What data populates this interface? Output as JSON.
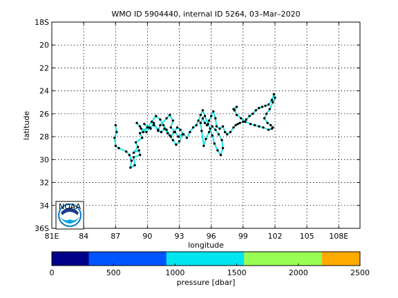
{
  "chart_data": {
    "type": "scatter",
    "title": "WMO ID 5904440, internal ID 5264, 03–Mar–2020",
    "xlabel": "longitude",
    "ylabel": "latitude",
    "xlim": [
      81,
      110
    ],
    "ylim_south_deg": [
      18,
      36
    ],
    "x_ticks": [
      81,
      84,
      87,
      90,
      93,
      96,
      99,
      102,
      105,
      108
    ],
    "x_tick_labels": [
      "81E",
      "84",
      "87",
      "90",
      "93",
      "96",
      "99",
      "102",
      "105",
      "108E"
    ],
    "y_ticks": [
      18,
      20,
      22,
      24,
      26,
      28,
      30,
      32,
      34,
      36
    ],
    "y_tick_labels": [
      "18S",
      "20",
      "22",
      "24",
      "26",
      "28",
      "30",
      "32",
      "34",
      "36S"
    ],
    "grid": true,
    "track_color": "#00e5e5",
    "point_color": "#000000",
    "track": {
      "lon": [
        87.0,
        87.1,
        86.9,
        87.0,
        87.3,
        88.0,
        88.3,
        88.5,
        88.4,
        88.8,
        88.7,
        89.3,
        89.2,
        88.7,
        89.1,
        88.9,
        89.5,
        89.3,
        90.0,
        89.7,
        90.3,
        90.6,
        91.0,
        91.2,
        91.8,
        92.1,
        92.4,
        92.2,
        92.6,
        92.9,
        93.3,
        93.0,
        92.7,
        92.4,
        92.1,
        91.8,
        91.5,
        91.2,
        90.8,
        90.4,
        90.0,
        89.6,
        89.3,
        89.0,
        89.4,
        89.9,
        90.2,
        90.6,
        91.0,
        91.3,
        91.6,
        91.9,
        92.2,
        92.5,
        92.8,
        93.1,
        93.4,
        93.7,
        94.0,
        94.3,
        94.6,
        94.8,
        95.0,
        95.2,
        95.4,
        95.7,
        95.9,
        96.1,
        96.3,
        96.6,
        96.9,
        97.1,
        97.0,
        96.7,
        96.4,
        96.1,
        95.8,
        95.5,
        95.3,
        95.1,
        95.0,
        95.2,
        95.4,
        95.6,
        95.8,
        96.0,
        96.2,
        96.4,
        96.5,
        96.8,
        97.1,
        97.3,
        97.5,
        97.8,
        98.1,
        98.3,
        98.5,
        98.7,
        99.0,
        99.3,
        99.6,
        99.9,
        100.2,
        100.5,
        100.8,
        101.1,
        101.4,
        101.7,
        101.9,
        102.0,
        101.8,
        101.5,
        101.2,
        101.0,
        101.3,
        101.6,
        101.8,
        101.7,
        101.4,
        100.9,
        100.5,
        100.1,
        99.7,
        99.2,
        98.8,
        98.4,
        98.2,
        98.4,
        98.1
      ],
      "lat": [
        -27.0,
        -27.6,
        -28.1,
        -28.8,
        -29.0,
        -29.3,
        -29.6,
        -30.1,
        -30.7,
        -30.5,
        -29.8,
        -29.6,
        -29.2,
        -29.4,
        -28.9,
        -28.5,
        -28.1,
        -27.7,
        -27.2,
        -26.9,
        -27.3,
        -26.8,
        -27.5,
        -27.0,
        -26.4,
        -26.1,
        -26.6,
        -27.2,
        -27.6,
        -28.0,
        -27.8,
        -28.4,
        -28.7,
        -28.3,
        -27.9,
        -27.4,
        -27.0,
        -26.5,
        -26.2,
        -26.7,
        -27.2,
        -27.6,
        -27.1,
        -26.8,
        -27.3,
        -27.6,
        -27.2,
        -27.0,
        -27.4,
        -27.6,
        -27.3,
        -27.7,
        -28.0,
        -27.6,
        -27.2,
        -27.4,
        -27.8,
        -28.1,
        -27.6,
        -27.2,
        -27.0,
        -26.6,
        -26.1,
        -25.7,
        -26.2,
        -26.9,
        -27.3,
        -27.9,
        -28.6,
        -29.2,
        -29.6,
        -29.0,
        -28.3,
        -27.8,
        -27.4,
        -27.1,
        -27.6,
        -28.2,
        -28.8,
        -27.5,
        -26.8,
        -26.4,
        -26.8,
        -27.0,
        -26.6,
        -26.2,
        -25.8,
        -26.4,
        -27.1,
        -27.3,
        -27.1,
        -27.6,
        -27.8,
        -27.6,
        -27.2,
        -27.0,
        -26.9,
        -26.8,
        -26.7,
        -26.5,
        -26.2,
        -26.0,
        -25.7,
        -25.5,
        -25.4,
        -25.3,
        -25.2,
        -24.8,
        -24.3,
        -24.6,
        -25.0,
        -25.6,
        -26.0,
        -26.4,
        -26.8,
        -27.0,
        -27.2,
        -27.3,
        -27.4,
        -27.2,
        -27.1,
        -27.0,
        -26.9,
        -26.7,
        -26.4,
        -26.1,
        -25.7,
        -25.4,
        -25.6
      ]
    },
    "colorbar": {
      "label": "pressure [dbar]",
      "ticks": [
        "0",
        "500",
        "1000",
        "1500",
        "2000",
        "2500"
      ],
      "range": [
        0,
        2500
      ],
      "bands": [
        {
          "from": 0,
          "to": 300,
          "color": "#000088"
        },
        {
          "from": 300,
          "to": 930,
          "color": "#0055ff"
        },
        {
          "from": 930,
          "to": 1560,
          "color": "#00e5ee"
        },
        {
          "from": 1560,
          "to": 2190,
          "color": "#99ff55"
        },
        {
          "from": 2190,
          "to": 2500,
          "color": "#ffaa00"
        }
      ]
    },
    "logo": {
      "text": "NOAA"
    }
  }
}
